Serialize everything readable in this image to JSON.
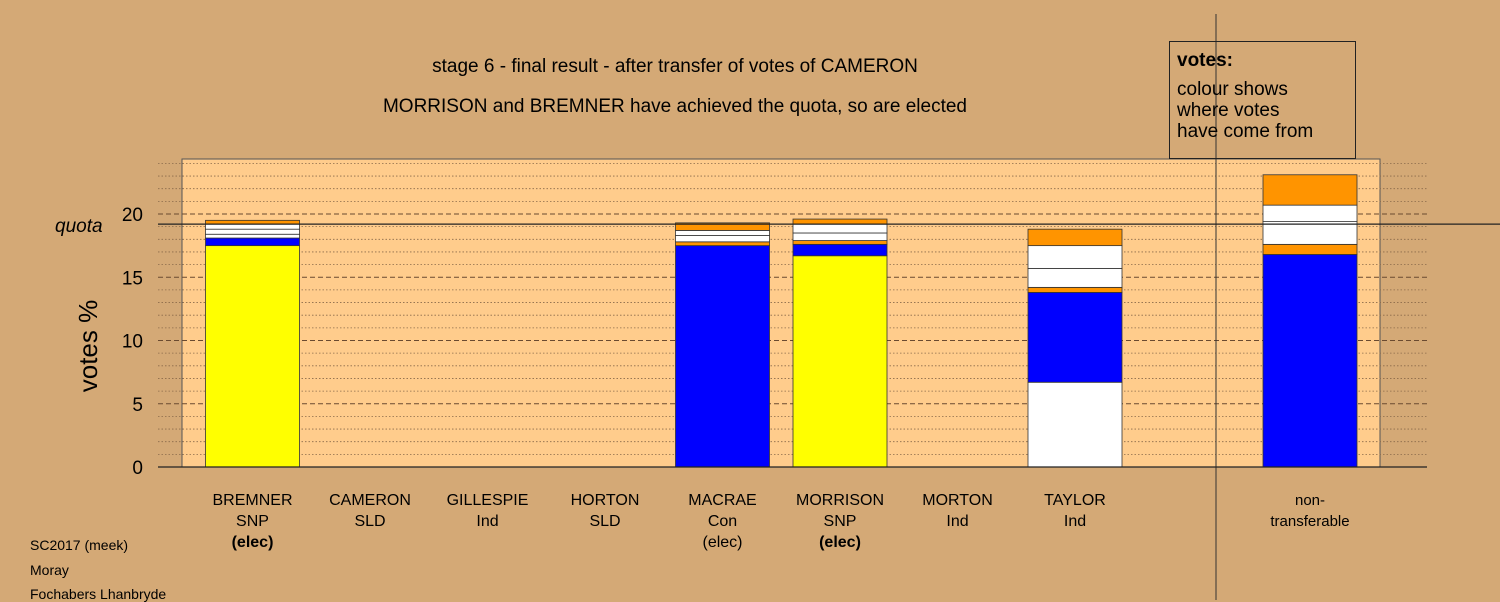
{
  "chart_data": {
    "type": "bar",
    "title": "stage 6 - final result - after transfer of votes of CAMERON",
    "subtitle": "MORRISON and BREMNER have achieved the quota, so are elected",
    "ylabel": "votes %",
    "ylim": [
      0,
      24
    ],
    "yticks": [
      0,
      5,
      10,
      15,
      20
    ],
    "quota_label": "quota",
    "quota": 19.2,
    "grid": true,
    "categories": [
      {
        "lines": [
          "BREMNER",
          "SNP",
          "(elec)"
        ],
        "bold_last": true
      },
      {
        "lines": [
          "CAMERON",
          "SLD"
        ]
      },
      {
        "lines": [
          "GILLESPIE",
          "Ind"
        ]
      },
      {
        "lines": [
          "HORTON",
          "SLD"
        ]
      },
      {
        "lines": [
          "MACRAE",
          "Con",
          "(elec)"
        ]
      },
      {
        "lines": [
          "MORRISON",
          "SNP",
          "(elec)"
        ],
        "bold_last": true
      },
      {
        "lines": [
          "MORTON",
          "Ind"
        ]
      },
      {
        "lines": [
          "TAYLOR",
          "Ind"
        ]
      },
      {
        "lines": [
          "non-",
          "transferable"
        ],
        "small": true
      }
    ],
    "stacks": [
      [
        {
          "color": "#ffff00",
          "value": 17.5
        },
        {
          "color": "#0000ff",
          "value": 0.6
        },
        {
          "color": "#ffffff",
          "value": 0.3
        },
        {
          "color": "#ffffff",
          "value": 0.4
        },
        {
          "color": "#ffffff",
          "value": 0.4
        },
        {
          "color": "#ff9400",
          "value": 0.3
        }
      ],
      [],
      [],
      [],
      [
        {
          "color": "#0000ff",
          "value": 17.5
        },
        {
          "color": "#ff9400",
          "value": 0.3
        },
        {
          "color": "#ffffff",
          "value": 0.5
        },
        {
          "color": "#ffffff",
          "value": 0.4
        },
        {
          "color": "#ff9400",
          "value": 0.6
        }
      ],
      [
        {
          "color": "#ffff00",
          "value": 16.7
        },
        {
          "color": "#0000ff",
          "value": 0.9
        },
        {
          "color": "#ff9400",
          "value": 0.3
        },
        {
          "color": "#ffffff",
          "value": 0.6
        },
        {
          "color": "#ffffff",
          "value": 0.7
        },
        {
          "color": "#ff9400",
          "value": 0.4
        }
      ],
      [],
      [
        {
          "color": "#ffffff",
          "value": 6.7
        },
        {
          "color": "#0000ff",
          "value": 7.1
        },
        {
          "color": "#ff9400",
          "value": 0.4
        },
        {
          "color": "#ffffff",
          "value": 1.5
        },
        {
          "color": "#ffffff",
          "value": 1.8
        },
        {
          "color": "#ff9400",
          "value": 1.3
        }
      ],
      [
        {
          "color": "#0000ff",
          "value": 16.8
        },
        {
          "color": "#ff9400",
          "value": 0.8
        },
        {
          "color": "#ffffff",
          "value": 1.8
        },
        {
          "color": "#ffffff",
          "value": 1.3
        },
        {
          "color": "#ff9400",
          "value": 2.4
        }
      ]
    ],
    "colors": {
      "background": "#d4a976",
      "plot_area": "#ffcc8c",
      "snp": "#ffff00",
      "con": "#0000ff",
      "orange": "#ff9400"
    }
  },
  "legend": {
    "heading": "votes:",
    "lines": [
      "colour shows",
      "where votes",
      "have come from"
    ]
  },
  "footer": {
    "line1": "SC2017 (meek)",
    "line2": "Moray",
    "line3": "Fochabers Lhanbryde"
  }
}
